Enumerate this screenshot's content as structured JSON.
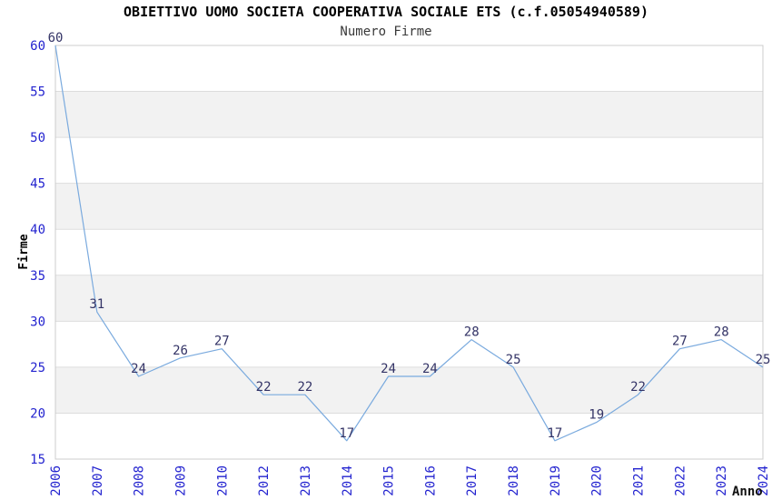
{
  "page": {
    "title": "OBIETTIVO UOMO SOCIETA COOPERATIVA SOCIALE ETS (c.f.05054940589)",
    "subtitle": "Numero Firme"
  },
  "chart_data": {
    "type": "line",
    "title": "OBIETTIVO UOMO SOCIETA COOPERATIVA SOCIALE ETS (c.f.05054940589)",
    "subtitle": "Numero Firme",
    "xlabel": "Anno",
    "ylabel": "Firme",
    "categories": [
      "2006",
      "2007",
      "2008",
      "2009",
      "2010",
      "2012",
      "2013",
      "2014",
      "2015",
      "2016",
      "2017",
      "2018",
      "2019",
      "2020",
      "2021",
      "2022",
      "2023",
      "2024"
    ],
    "values": [
      60,
      31,
      24,
      26,
      27,
      22,
      22,
      17,
      24,
      24,
      28,
      25,
      17,
      19,
      22,
      27,
      28,
      25
    ],
    "data_labels_visible": true,
    "ylim": [
      15,
      60
    ],
    "ytick_step": 5,
    "yticks": [
      15,
      20,
      25,
      30,
      35,
      40,
      45,
      50,
      55,
      60
    ],
    "grid": "horizontal",
    "legend": "none",
    "band_ranges": [
      [
        20,
        25
      ],
      [
        30,
        35
      ],
      [
        40,
        45
      ],
      [
        50,
        55
      ]
    ],
    "colors": {
      "line": "#7aaade",
      "tick_label": "#2323cf",
      "data_label": "#333366",
      "band": "#f2f2f2",
      "grid": "#dddddd",
      "border": "#cccccc",
      "title": "#000000",
      "subtitle": "#3a3a3a",
      "background": "#ffffff"
    }
  }
}
